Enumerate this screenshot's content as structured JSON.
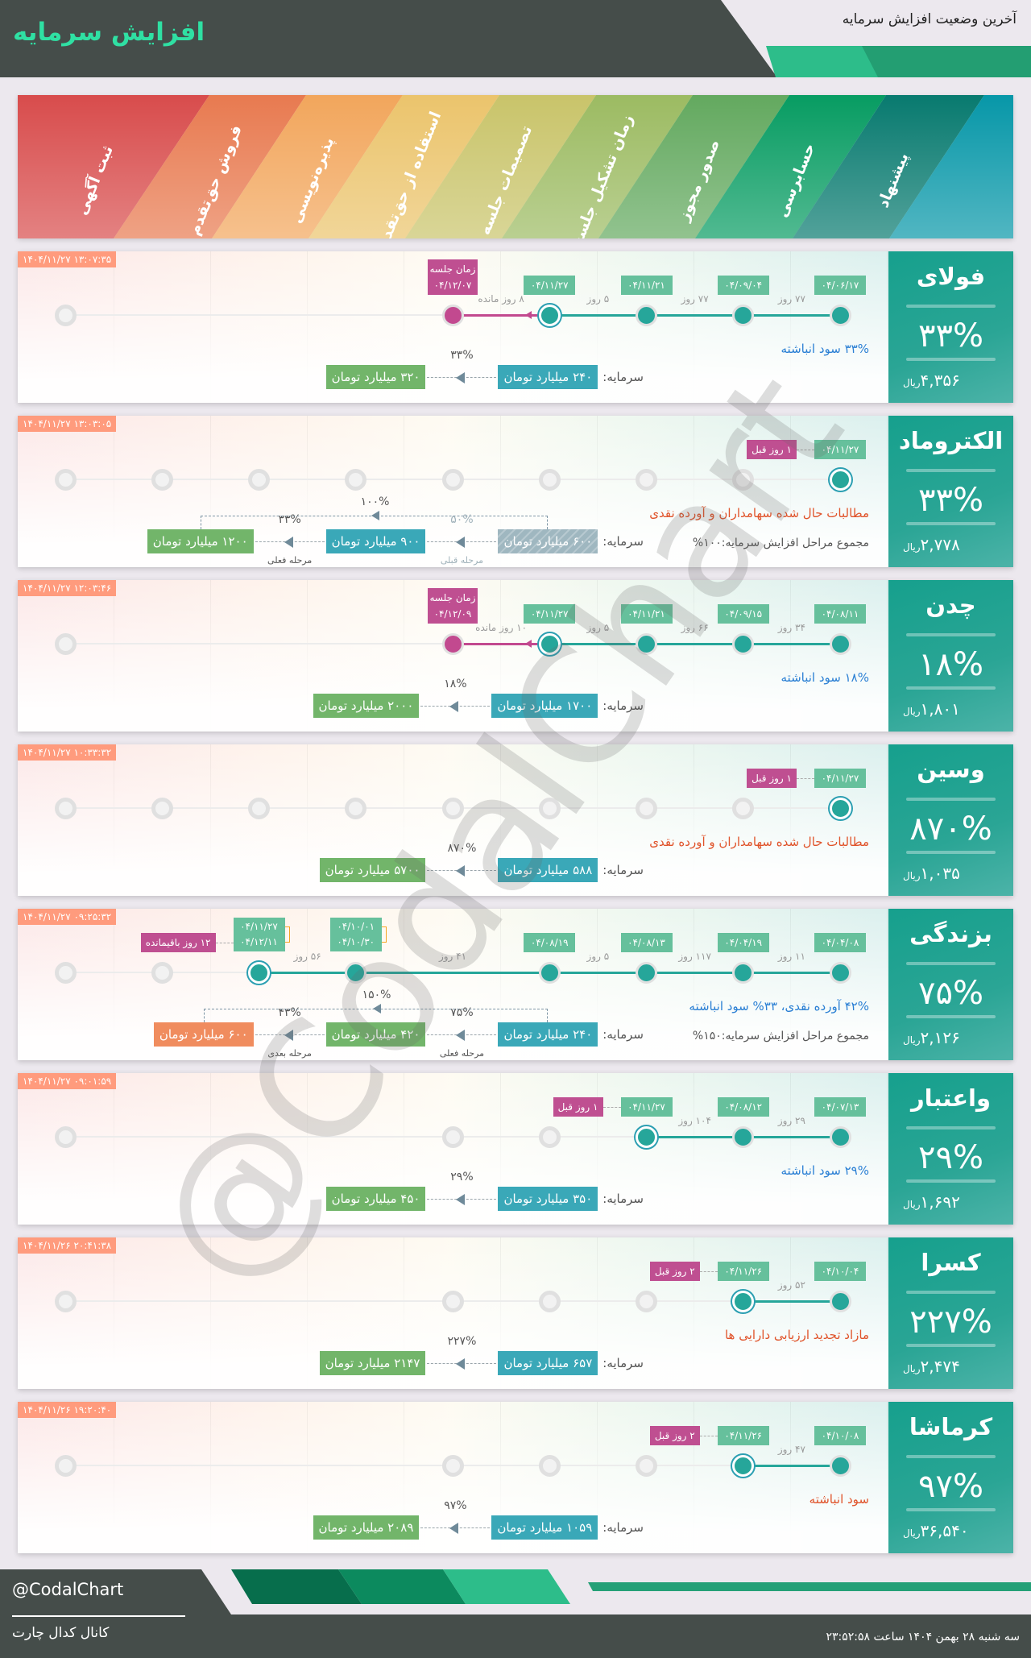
{
  "header": {
    "title": "افزایش سرمایه",
    "subtitle": "آخرین وضعیت افزایش سرمایه"
  },
  "stages": {
    "labels": [
      "ثبت آگهی",
      "فروش حق‌تقدم",
      "پذیره‌نویسی",
      "استفاده از حق‌تقدم",
      "تصمیمات جلسه",
      "زمان تشکیل جلسه",
      "صدور مجوز",
      "حسابرسی",
      "پیشنهاد"
    ],
    "colors": [
      "#d84c4c",
      "#e87a50",
      "#f2a65c",
      "#ebc46c",
      "#c9c46a",
      "#9cbb62",
      "#63a95f",
      "#079c62",
      "#087a6f",
      "#0797a8"
    ]
  },
  "common": {
    "capital_label": "سرمایه:",
    "currency": "ریال"
  },
  "cards": [
    {
      "name": "فولای",
      "percent": "۳۳%",
      "price": "۴,۳۵۶",
      "timestamp": "۱۴۰۴/۱۱/۲۷ ۱۳:۰۷:۳۵",
      "nodes": [
        "done",
        "done",
        "done",
        "current",
        "target",
        "hidden",
        "hidden",
        "hidden",
        "empty"
      ],
      "dates": [
        {
          "stage": 0,
          "lines": [
            "۰۴/۰۶/۱۷"
          ]
        },
        {
          "stage": 1,
          "lines": [
            "۰۴/۰۹/۰۴"
          ]
        },
        {
          "stage": 2,
          "lines": [
            "۰۴/۱۱/۲۱"
          ]
        },
        {
          "stage": 3,
          "lines": [
            "۰۴/۱۱/۲۷"
          ]
        }
      ],
      "gaps": [
        {
          "from": 0,
          "to": 1,
          "text": "۷۷ روز"
        },
        {
          "from": 1,
          "to": 2,
          "text": "۷۷ روز"
        },
        {
          "from": 2,
          "to": 3,
          "text": "۵ روز"
        },
        {
          "from": 3,
          "to": 4,
          "text": "۸ روز مانده"
        }
      ],
      "meeting": {
        "stage": 4,
        "label": "زمان جلسه",
        "date": "۰۴/۱۲/۰۷"
      },
      "description": {
        "text": "۳۳% سود انباشته",
        "color": "#2a7fd4"
      },
      "capital": {
        "steps": [
          {
            "kind": "current",
            "value": "۲۴۰ میلیارد تومان"
          },
          {
            "kind": "target",
            "value": "۳۲۰ میلیارد تومان"
          }
        ],
        "arrows": [
          {
            "pct": "۳۳%"
          }
        ]
      }
    },
    {
      "name": "الکتروماد",
      "percent": "۳۳%",
      "price": "۲,۷۷۸",
      "timestamp": "۱۴۰۴/۱۱/۲۷ ۱۳:۰۳:۰۵",
      "nodes": [
        "current",
        "empty",
        "empty",
        "empty",
        "empty",
        "empty",
        "empty",
        "empty",
        "empty"
      ],
      "dates": [
        {
          "stage": 0,
          "lines": [
            "۰۴/۱۱/۲۷"
          ]
        }
      ],
      "gaps": [],
      "ago": "۱ روز قبل",
      "description": {
        "text": "مطالبات حال شده سهامداران و آورده نقدی",
        "color": "#e0532a"
      },
      "summary": "مجموع مراحل افزایش سرمایه:۱۰۰%",
      "capital": {
        "steps": [
          {
            "kind": "previous",
            "value": "۶۰۰ میلیارد تومان"
          },
          {
            "kind": "current",
            "value": "۹۰۰ میلیارد تومان"
          },
          {
            "kind": "target",
            "value": "۱۲۰۰ میلیارد تومان"
          }
        ],
        "arrows": [
          {
            "pct": "۵۰%",
            "caption": "مرحله قبلی",
            "prev": true
          },
          {
            "pct": "۳۳%",
            "caption": "مرحله فعلی"
          }
        ],
        "total": "۱۰۰%"
      }
    },
    {
      "name": "چدن",
      "percent": "۱۸%",
      "price": "۱,۸۰۱",
      "timestamp": "۱۴۰۴/۱۱/۲۷ ۱۲:۰۳:۴۶",
      "nodes": [
        "done",
        "done",
        "done",
        "current",
        "target",
        "hidden",
        "hidden",
        "hidden",
        "empty"
      ],
      "dates": [
        {
          "stage": 0,
          "lines": [
            "۰۴/۰۸/۱۱"
          ]
        },
        {
          "stage": 1,
          "lines": [
            "۰۴/۰۹/۱۵"
          ]
        },
        {
          "stage": 2,
          "lines": [
            "۰۴/۱۱/۲۱"
          ]
        },
        {
          "stage": 3,
          "lines": [
            "۰۴/۱۱/۲۷"
          ]
        }
      ],
      "gaps": [
        {
          "from": 0,
          "to": 1,
          "text": "۳۴ روز"
        },
        {
          "from": 1,
          "to": 2,
          "text": "۶۶ روز"
        },
        {
          "from": 2,
          "to": 3,
          "text": "۵ روز"
        },
        {
          "from": 3,
          "to": 4,
          "text": "۱۰ روز مانده"
        }
      ],
      "meeting": {
        "stage": 4,
        "label": "زمان جلسه",
        "date": "۰۴/۱۲/۰۹"
      },
      "description": {
        "text": "۱۸% سود انباشته",
        "color": "#2a7fd4"
      },
      "capital": {
        "steps": [
          {
            "kind": "current",
            "value": "۱۷۰۰ میلیارد تومان"
          },
          {
            "kind": "target",
            "value": "۲۰۰۰ میلیارد تومان"
          }
        ],
        "arrows": [
          {
            "pct": "۱۸%"
          }
        ]
      }
    },
    {
      "name": "وسین",
      "percent": "۸۷۰%",
      "price": "۱,۰۳۵",
      "timestamp": "۱۴۰۴/۱۱/۲۷ ۱۰:۳۳:۳۲",
      "nodes": [
        "current",
        "empty",
        "empty",
        "empty",
        "empty",
        "empty",
        "empty",
        "empty",
        "empty"
      ],
      "dates": [
        {
          "stage": 0,
          "lines": [
            "۰۴/۱۱/۲۷"
          ]
        }
      ],
      "gaps": [],
      "ago": "۱ روز قبل",
      "description": {
        "text": "مطالبات حال شده سهامداران و آورده نقدی",
        "color": "#e0532a"
      },
      "capital": {
        "steps": [
          {
            "kind": "current",
            "value": "۵۸۸ میلیارد تومان"
          },
          {
            "kind": "target",
            "value": "۵۷۰۰ میلیارد تومان"
          }
        ],
        "arrows": [
          {
            "pct": "۸۷۰%"
          }
        ]
      }
    },
    {
      "name": "بزندگی",
      "percent": "۷۵%",
      "price": "۲,۱۲۶",
      "timestamp": "۱۴۰۴/۱۱/۲۷ ۰۹:۲۵:۳۲",
      "nodes": [
        "done",
        "done",
        "done",
        "done",
        "hidden",
        "done",
        "current",
        "empty",
        "empty"
      ],
      "dates": [
        {
          "stage": 0,
          "lines": [
            "۰۴/۰۴/۰۸"
          ]
        },
        {
          "stage": 1,
          "lines": [
            "۰۴/۰۴/۱۹"
          ]
        },
        {
          "stage": 2,
          "lines": [
            "۰۴/۰۸/۱۳"
          ]
        },
        {
          "stage": 3,
          "lines": [
            "۰۴/۰۸/۱۹"
          ]
        },
        {
          "stage": 5,
          "lines": [
            "۰۴/۱۰/۰۱",
            "۰۴/۱۰/۳۰"
          ]
        },
        {
          "stage": 6,
          "lines": [
            "۰۴/۱۱/۲۷",
            "۰۴/۱۲/۱۱"
          ]
        }
      ],
      "gaps": [
        {
          "from": 0,
          "to": 1,
          "text": "۱۱ روز"
        },
        {
          "from": 1,
          "to": 2,
          "text": "۱۱۷ روز"
        },
        {
          "from": 2,
          "to": 3,
          "text": "۵ روز"
        },
        {
          "from": 3,
          "to": 5,
          "text": "۴۱ روز"
        },
        {
          "from": 5,
          "to": 6,
          "text": "۵۶ روز"
        }
      ],
      "ago": "۱۲ روز باقیمانده",
      "description": {
        "text": "۴۲% آورده نقدی، ۳۳% سود انباشته",
        "color": "#2a7fd4"
      },
      "summary": "مجموع مراحل افزایش سرمایه:۱۵۰%",
      "capital": {
        "steps": [
          {
            "kind": "current",
            "value": "۲۴۰ میلیارد تومان"
          },
          {
            "kind": "target",
            "value": "۴۲۰ میلیارد تومان"
          },
          {
            "kind": "next",
            "value": "۶۰۰ میلیارد تومان"
          }
        ],
        "arrows": [
          {
            "pct": "۷۵%",
            "caption": "مرحله فعلی"
          },
          {
            "pct": "۴۳%",
            "caption": "مرحله بعدی"
          }
        ],
        "total": "۱۵۰%"
      }
    },
    {
      "name": "واعتبار",
      "percent": "۲۹%",
      "price": "۱,۶۹۲",
      "timestamp": "۱۴۰۴/۱۱/۲۷ ۰۹:۰۱:۵۹",
      "nodes": [
        "done",
        "done",
        "current",
        "empty",
        "empty",
        "hidden",
        "hidden",
        "hidden",
        "empty"
      ],
      "dates": [
        {
          "stage": 0,
          "lines": [
            "۰۴/۰۷/۱۳"
          ]
        },
        {
          "stage": 1,
          "lines": [
            "۰۴/۰۸/۱۲"
          ]
        },
        {
          "stage": 2,
          "lines": [
            "۰۴/۱۱/۲۷"
          ]
        }
      ],
      "gaps": [
        {
          "from": 0,
          "to": 1,
          "text": "۲۹ روز"
        },
        {
          "from": 1,
          "to": 2,
          "text": "۱۰۴ روز"
        }
      ],
      "ago": "۱ روز قبل",
      "description": {
        "text": "۲۹% سود انباشته",
        "color": "#2a7fd4"
      },
      "capital": {
        "steps": [
          {
            "kind": "current",
            "value": "۳۵۰ میلیارد تومان"
          },
          {
            "kind": "target",
            "value": "۴۵۰ میلیارد تومان"
          }
        ],
        "arrows": [
          {
            "pct": "۲۹%"
          }
        ]
      }
    },
    {
      "name": "کسرا",
      "percent": "۲۲۷%",
      "price": "۲,۴۷۴",
      "timestamp": "۱۴۰۴/۱۱/۲۶ ۲۰:۴۱:۳۸",
      "nodes": [
        "done",
        "current",
        "empty",
        "empty",
        "empty",
        "hidden",
        "hidden",
        "hidden",
        "empty"
      ],
      "dates": [
        {
          "stage": 0,
          "lines": [
            "۰۴/۱۰/۰۴"
          ]
        },
        {
          "stage": 1,
          "lines": [
            "۰۴/۱۱/۲۶"
          ]
        }
      ],
      "gaps": [
        {
          "from": 0,
          "to": 1,
          "text": "۵۲ روز"
        }
      ],
      "ago": "۲ روز قبل",
      "description": {
        "text": "مازاد تجدید ارزیابی دارایی ها",
        "color": "#e0532a"
      },
      "capital": {
        "steps": [
          {
            "kind": "current",
            "value": "۶۵۷ میلیارد تومان"
          },
          {
            "kind": "target",
            "value": "۲۱۴۷ میلیارد تومان"
          }
        ],
        "arrows": [
          {
            "pct": "۲۲۷%"
          }
        ]
      }
    },
    {
      "name": "کرماشا",
      "percent": "۹۷%",
      "price": "۳۶,۵۴۰",
      "timestamp": "۱۴۰۴/۱۱/۲۶ ۱۹:۲۰:۴۰",
      "nodes": [
        "done",
        "current",
        "empty",
        "empty",
        "empty",
        "hidden",
        "hidden",
        "hidden",
        "empty"
      ],
      "dates": [
        {
          "stage": 0,
          "lines": [
            "۰۴/۱۰/۰۸"
          ]
        },
        {
          "stage": 1,
          "lines": [
            "۰۴/۱۱/۲۶"
          ]
        }
      ],
      "gaps": [
        {
          "from": 0,
          "to": 1,
          "text": "۴۷ روز"
        }
      ],
      "ago": "۲ روز قبل",
      "description": {
        "text": "سود انباشته",
        "color": "#e0532a"
      },
      "capital": {
        "steps": [
          {
            "kind": "current",
            "value": "۱۰۵۹ میلیارد تومان"
          },
          {
            "kind": "target",
            "value": "۲۰۸۹ میلیارد تومان"
          }
        ],
        "arrows": [
          {
            "pct": "۹۷%"
          }
        ]
      }
    }
  ],
  "watermark": "@CodalChart",
  "footer": {
    "handle": "@CodalChart",
    "channel": "کانال کدال چارت",
    "datetime": "سه شنبه ۲۸ بهمن ۱۴۰۴ ساعت ۲۳:۵۲:۵۸"
  }
}
